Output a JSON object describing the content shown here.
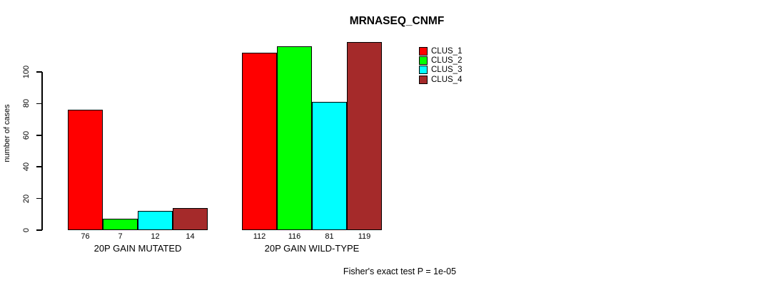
{
  "chart_data": {
    "type": "bar",
    "title": "MRNASEQ_CNMF",
    "ylabel": "number of cases",
    "xlabel": "",
    "ylim": [
      0,
      100
    ],
    "yticks": [
      0,
      20,
      40,
      60,
      80,
      100
    ],
    "grid": false,
    "categories": [
      "20P GAIN MUTATED",
      "20P GAIN WILD-TYPE"
    ],
    "series": [
      {
        "name": "CLUS_1",
        "color": "#ff0000",
        "values": [
          76,
          112
        ]
      },
      {
        "name": "CLUS_2",
        "color": "#00ff00",
        "values": [
          7,
          116
        ]
      },
      {
        "name": "CLUS_3",
        "color": "#00ffff",
        "values": [
          12,
          81
        ]
      },
      {
        "name": "CLUS_4",
        "color": "#a52a2a",
        "values": [
          14,
          119
        ]
      }
    ],
    "bar_value_labels_shown": true,
    "legend_position": "top-right",
    "annotation": "Fisher's exact test P = 1e-05"
  }
}
